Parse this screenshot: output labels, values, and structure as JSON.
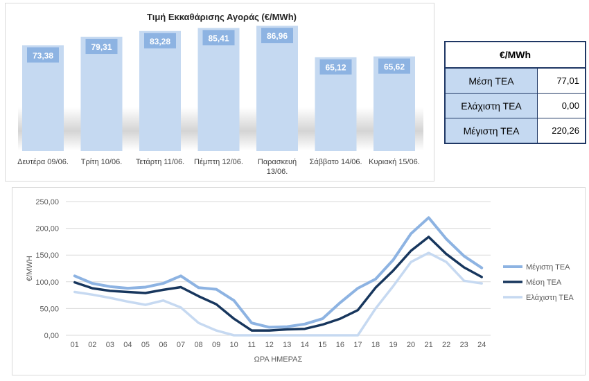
{
  "bar_chart": {
    "title": "Τιμή Εκκαθάρισης Αγοράς (€/MWh)"
  },
  "table": {
    "header": "€/MWh",
    "rows": [
      {
        "label": "Μέση ΤΕΑ",
        "value": "77,01"
      },
      {
        "label": "Ελάχιστη ΤΕΑ",
        "value": "0,00"
      },
      {
        "label": "Μέγιστη ΤΕΑ",
        "value": "220,26"
      }
    ]
  },
  "line_chart": {
    "xlabel": "ΩΡΑ ΗΜΕΡΑΣ",
    "ylabel": "€/MWH"
  },
  "colors": {
    "bar_fill": "#c5d9f1",
    "bar_label_box": "#8db3e2",
    "max_line": "#8db3e2",
    "avg_line": "#17365d",
    "min_line": "#c6d9f1",
    "grid": "#d9d9d9",
    "table_label_bg": "#c5d9f1",
    "table_border": "#1f3764"
  },
  "chart_data": [
    {
      "type": "bar",
      "title": "Τιμή Εκκαθάρισης Αγοράς (€/MWh)",
      "categories": [
        "Δευτέρα 09/06.",
        "Τρίτη 10/06.",
        "Τετάρτη 11/06.",
        "Πέμπτη 12/06.",
        "Παρασκευή 13/06.",
        "Σάββατο 14/06.",
        "Κυριακή 15/06."
      ],
      "values": [
        73.38,
        79.31,
        83.28,
        85.41,
        86.96,
        65.12,
        65.62
      ],
      "value_labels": [
        "73,38",
        "79,31",
        "83,28",
        "85,41",
        "86,96",
        "65,12",
        "65,62"
      ],
      "xlabel": "",
      "ylabel": "",
      "grid": false
    },
    {
      "type": "line",
      "title": "",
      "xlabel": "ΩΡΑ ΗΜΕΡΑΣ",
      "ylabel": "€/MWH",
      "ylim": [
        0,
        250
      ],
      "yticks": [
        "0,00",
        "50,00",
        "100,00",
        "150,00",
        "200,00",
        "250,00"
      ],
      "x": [
        "01",
        "02",
        "03",
        "04",
        "05",
        "06",
        "07",
        "08",
        "09",
        "10",
        "11",
        "12",
        "13",
        "14",
        "15",
        "16",
        "17",
        "18",
        "19",
        "20",
        "21",
        "22",
        "23",
        "24"
      ],
      "grid": true,
      "legend": "right",
      "series": [
        {
          "name": "Μέγιστη ΤΕΑ",
          "values": [
            111,
            97,
            91,
            88,
            90,
            97,
            111,
            89,
            86,
            65,
            23,
            15,
            16,
            21,
            31,
            61,
            88,
            105,
            141,
            190,
            220,
            180,
            148,
            126
          ]
        },
        {
          "name": "Μέση ΤΕΑ",
          "values": [
            99,
            88,
            83,
            81,
            79,
            85,
            90,
            73,
            58,
            31,
            9,
            9,
            11,
            12,
            20,
            31,
            47,
            89,
            121,
            158,
            184,
            152,
            127,
            109
          ]
        },
        {
          "name": "Ελάχιστη ΤΕΑ",
          "values": [
            81,
            76,
            70,
            63,
            57,
            65,
            52,
            23,
            9,
            0,
            0,
            0,
            0,
            0,
            0,
            0,
            0,
            50,
            92,
            137,
            154,
            137,
            102,
            97
          ]
        }
      ]
    }
  ]
}
